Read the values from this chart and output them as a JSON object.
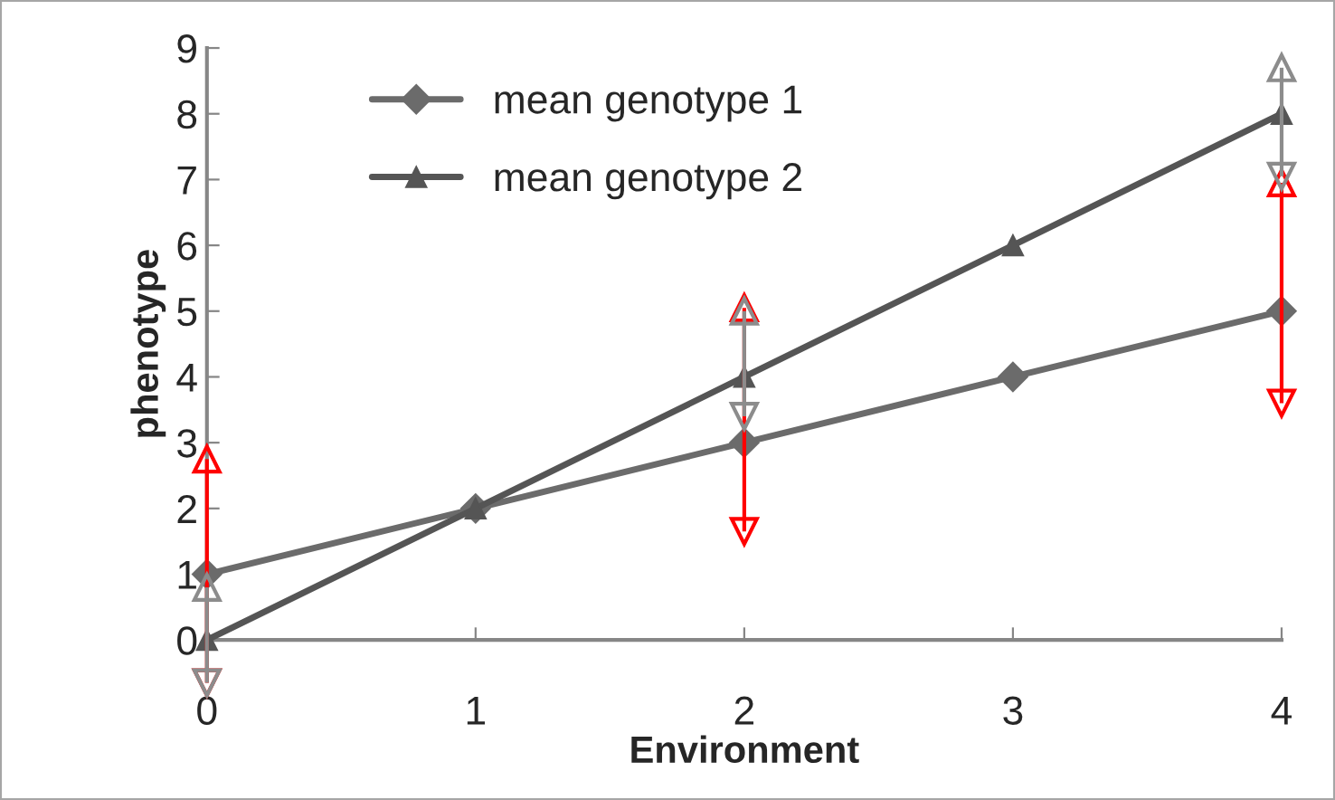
{
  "chart_data": {
    "type": "line",
    "xlabel": "Environment",
    "ylabel": "phenotype",
    "x": [
      0,
      1,
      2,
      3,
      4
    ],
    "xlim": [
      0,
      4
    ],
    "xticks": [
      0,
      1,
      2,
      3,
      4
    ],
    "ylim": [
      0,
      9
    ],
    "yticks": [
      0,
      1,
      2,
      3,
      4,
      5,
      6,
      7,
      8,
      9
    ],
    "series": [
      {
        "name": "mean genotype 1",
        "color": "#6b6b6b",
        "marker": "diamond",
        "values": [
          1,
          2,
          3,
          4,
          5
        ],
        "errors": [
          [
            -0.65,
            2.75
          ],
          null,
          [
            1.65,
            5.05
          ],
          null,
          [
            3.6,
            6.95
          ]
        ]
      },
      {
        "name": "mean genotype 2",
        "color": "#555555",
        "marker": "triangle",
        "values": [
          0,
          2,
          4,
          6,
          8
        ],
        "errors": [
          [
            -0.65,
            0.8
          ],
          null,
          [
            3.4,
            5.0
          ],
          null,
          [
            7.05,
            8.7
          ]
        ]
      }
    ],
    "legend": "top left",
    "grid": false,
    "line_style": "solid"
  }
}
